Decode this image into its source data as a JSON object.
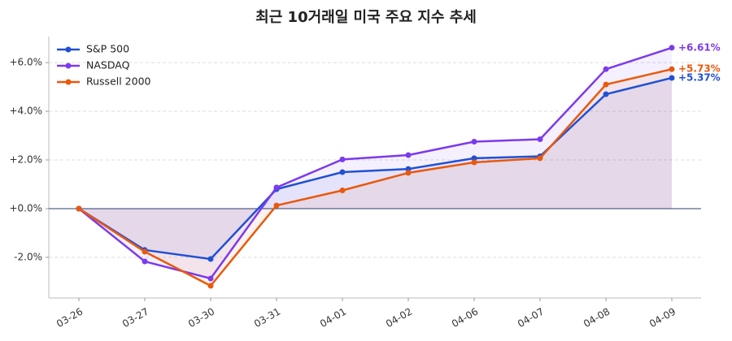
{
  "chart_data": {
    "type": "line",
    "title": "최근 10거래일 미국 주요 지수 추세",
    "categories": [
      "03-26",
      "03-27",
      "03-30",
      "03-31",
      "04-01",
      "04-02",
      "04-06",
      "04-07",
      "04-08",
      "04-09"
    ],
    "series": [
      {
        "name": "S&P 500",
        "color": "#2150d4",
        "values": [
          0,
          -1.7,
          -2.07,
          0.8,
          1.5,
          1.63,
          2.07,
          2.15,
          4.7,
          5.37
        ],
        "value_labels": [
          null,
          null,
          null,
          null,
          null,
          null,
          null,
          null,
          null,
          "+5.37%"
        ]
      },
      {
        "name": "NASDAQ",
        "color": "#7c3aed",
        "values": [
          0,
          -2.17,
          -2.87,
          0.87,
          2.02,
          2.2,
          2.75,
          2.85,
          5.73,
          6.61
        ],
        "value_labels": [
          null,
          null,
          null,
          null,
          null,
          null,
          null,
          null,
          null,
          "+6.61%"
        ]
      },
      {
        "name": "Russell 2000",
        "color": "#e8590c",
        "values": [
          0,
          -1.77,
          -3.17,
          0.13,
          0.75,
          1.47,
          1.9,
          2.07,
          5.1,
          5.73
        ],
        "value_labels": [
          null,
          null,
          null,
          null,
          null,
          null,
          null,
          null,
          null,
          "+5.73%"
        ]
      }
    ],
    "ylim": [
      -3.67,
      7.07
    ],
    "yticks": [
      {
        "value": -2,
        "label": "-2.0%"
      },
      {
        "value": 0,
        "label": "+0.0%"
      },
      {
        "value": 2,
        "label": "+2.0%"
      },
      {
        "value": 4,
        "label": "+4.0%"
      },
      {
        "value": 6,
        "label": "+6.0%"
      }
    ],
    "grid": true,
    "zero_line": true,
    "legend": "upper-left",
    "area_fill": true
  }
}
